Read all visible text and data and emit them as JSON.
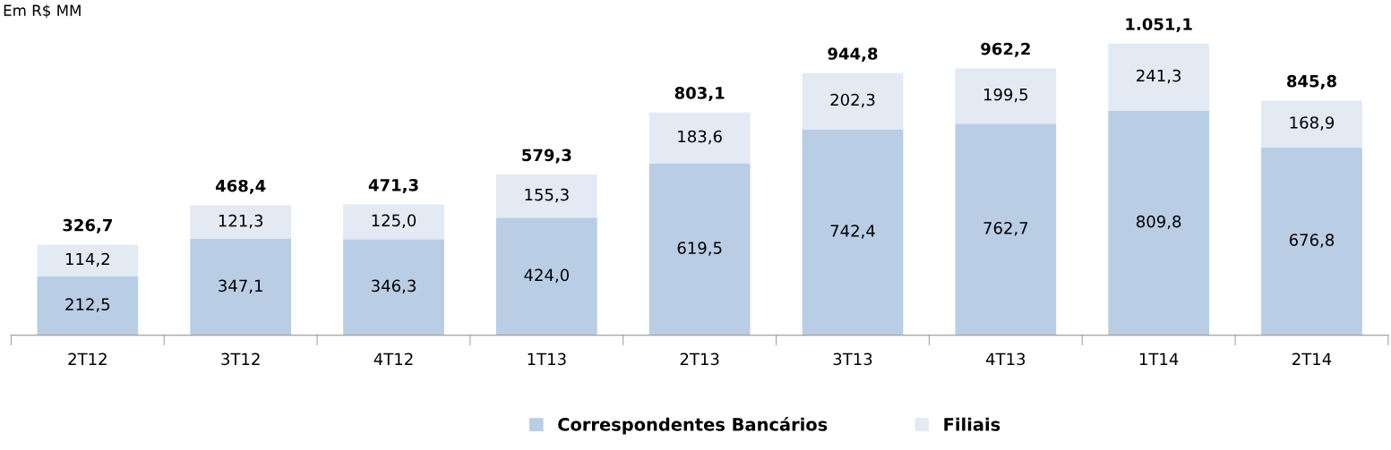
{
  "chart_data": {
    "type": "bar",
    "stacked": true,
    "categories": [
      "2T12",
      "3T12",
      "4T12",
      "1T13",
      "2T13",
      "3T13",
      "4T13",
      "1T14",
      "2T14"
    ],
    "series": [
      {
        "name": "Correspondentes Bancários",
        "color": "#b9cde5",
        "values": [
          212.5,
          347.1,
          346.3,
          424.0,
          619.5,
          742.4,
          762.7,
          809.8,
          676.8
        ],
        "value_labels": [
          "212,5",
          "347,1",
          "346,3",
          "424,0",
          "619,5",
          "742,4",
          "762,7",
          "809,8",
          "676,8"
        ]
      },
      {
        "name": "Filiais",
        "color": "#e3eaf4",
        "values": [
          114.2,
          121.3,
          125.0,
          155.3,
          183.6,
          202.3,
          199.5,
          241.3,
          168.9
        ],
        "value_labels": [
          "114,2",
          "121,3",
          "125,0",
          "155,3",
          "183,6",
          "202,3",
          "199,5",
          "241,3",
          "168,9"
        ]
      }
    ],
    "totals": [
      "326,7",
      "468,4",
      "471,3",
      "579,3",
      "803,1",
      "944,8",
      "962,2",
      "1.051,1",
      "845,8"
    ],
    "annotations": [
      "Em R$ MM"
    ],
    "legend": "bottom",
    "grid": false,
    "tick_labels": "x"
  }
}
